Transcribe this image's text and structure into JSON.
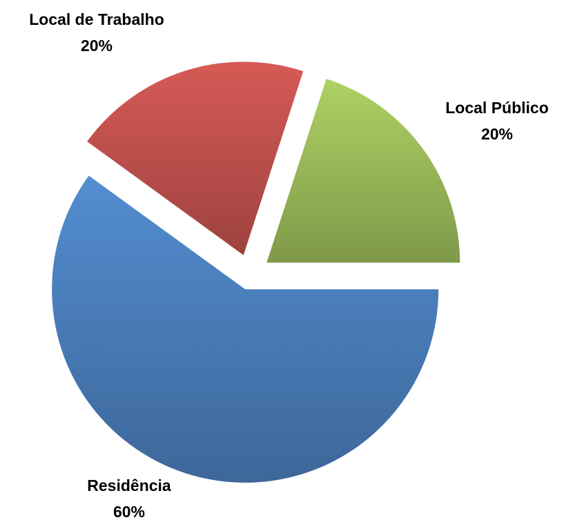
{
  "chart_data": {
    "type": "pie",
    "categories": [
      "Residência",
      "Local de Trabalho",
      "Local Público"
    ],
    "values": [
      60,
      20,
      20
    ],
    "value_labels": [
      "60%",
      "20%",
      "20%"
    ],
    "colors": [
      "#4a7ebb",
      "#c0504d",
      "#9bbb59"
    ]
  }
}
